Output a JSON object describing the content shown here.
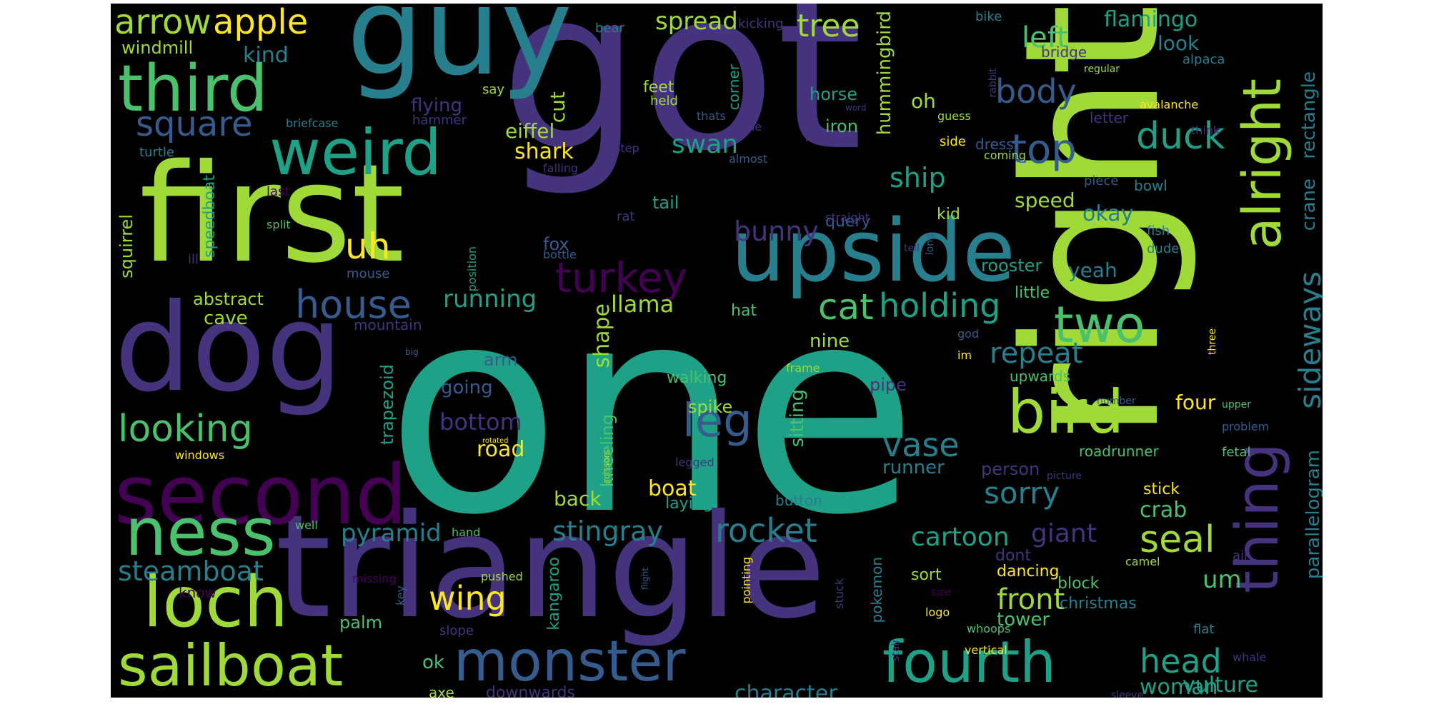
{
  "word_cloud": {
    "palette": {
      "purple_dark": "#440154",
      "indigo": "#46337e",
      "blue": "#365c8d",
      "teal_blue": "#277f8e",
      "teal": "#1fa187",
      "green": "#4ac16d",
      "lime": "#a0da39",
      "yellow": "#fde725",
      "background": "#000000"
    },
    "words": {
      "one": "one",
      "got": "got",
      "right": "right",
      "triangle": "triangle",
      "first": "first",
      "guy": "guy",
      "dog": "dog",
      "second": "second",
      "ness": "ness",
      "loch": "loch",
      "sailboat": "sailboat",
      "weird": "weird",
      "third": "third",
      "upside": "upside",
      "monster": "monster",
      "fourth": "fourth",
      "thing": "thing",
      "alright": "alright",
      "bird": "bird",
      "two": "two",
      "arrow": "arrow",
      "apple": "apple",
      "square": "square",
      "top": "top",
      "turkey": "turkey",
      "house": "house",
      "looking": "looking",
      "leg": "leg",
      "cat": "cat",
      "holding": "holding",
      "duck": "duck",
      "body": "body",
      "seal": "seal",
      "sorry": "sorry",
      "vase": "vase",
      "repeat": "repeat",
      "sideways": "sideways",
      "rocket": "rocket",
      "stingray": "stingray",
      "pyramid": "pyramid",
      "wing": "wing",
      "steamboat": "steamboat",
      "head": "head",
      "front": "front",
      "giant": "giant",
      "cartoon": "cartoon",
      "bottom": "bottom",
      "running": "running",
      "bunny": "bunny",
      "ship": "ship",
      "swan": "swan",
      "uh": "uh",
      "tree": "tree",
      "spread": "spread",
      "left": "left",
      "flamingo": "flamingo",
      "kind": "kind",
      "windmill": "windmill",
      "character": "character",
      "woman": "woman",
      "vulture": "vulture",
      "um": "um",
      "crab": "crab",
      "llama": "llama",
      "shark": "shark",
      "eiffel": "eiffel",
      "cut": "cut",
      "shape": "shape",
      "road": "road",
      "boat": "boat",
      "back": "back",
      "okay": "okay",
      "speed": "speed",
      "rooster": "rooster",
      "yeah": "yeah",
      "four": "four",
      "parallelogram": "parallelogram",
      "crane": "crane",
      "rectangle": "rectangle",
      "hummingbird": "hummingbird",
      "look": "look",
      "oh": "oh",
      "iron": "iron",
      "horse": "horse",
      "nine": "nine",
      "sitting": "sitting",
      "kneeling": "kneeling",
      "trapezoid": "trapezoid",
      "squirrel": "squirrel",
      "speedboat": "speedboat",
      "abstract": "abstract",
      "cave": "cave",
      "fox": "fox",
      "tail": "tail",
      "flying": "flying",
      "feet": "feet",
      "runner": "runner",
      "spike": "spike",
      "walking": "walking",
      "arm": "arm",
      "going": "going",
      "ok": "ok",
      "palm": "palm",
      "kangaroo": "kangaroo",
      "tower": "tower",
      "dancing": "dancing",
      "block": "block",
      "christmas": "christmas",
      "dont": "dont",
      "sort": "sort",
      "person": "person",
      "roadrunner": "roadrunner",
      "stick": "stick",
      "kid": "kid",
      "query": "query",
      "dress": "dress",
      "hat": "hat",
      "pipe": "pipe",
      "little": "little",
      "upwards": "upwards",
      "mountain": "mountain",
      "laying": "laying",
      "button": "button",
      "downwards": "downwards",
      "axe": "axe",
      "pokemon": "pokemon",
      "corner": "corner",
      "bowl": "bowl",
      "letter": "letter",
      "avalanche": "avalanche",
      "alpaca": "alpaca",
      "bridge": "bridge",
      "hammer": "hammer",
      "turtle": "turtle",
      "briefcase": "briefcase",
      "say": "say",
      "held": "held",
      "kicking": "kicking",
      "bear": "bear",
      "bike": "bike",
      "regular": "regular",
      "thats": "thats",
      "time": "time",
      "rhombus": "rhombus",
      "word": "word",
      "guess": "guess",
      "think": "think",
      "side": "side",
      "coming": "coming",
      "step": "step",
      "almost": "almost",
      "falling": "falling",
      "rabbit": "rabbit",
      "piece": "piece",
      "last": "last",
      "split": "split",
      "rat": "rat",
      "straight": "straight",
      "tell": "tell",
      "long": "long",
      "fish": "fish",
      "dude": "dude",
      "bottle": "bottle",
      "ill": "ill",
      "mouse": "mouse",
      "position": "position",
      "god": "god",
      "im": "im",
      "three": "three",
      "big": "big",
      "frame": "frame",
      "number": "number",
      "upper": "upper",
      "problem": "problem",
      "fetal": "fetal",
      "windows": "windows",
      "rotated": "rotated",
      "legged": "legged",
      "scissors": "scissors",
      "picture": "picture",
      "hand": "hand",
      "well": "well",
      "know": "know",
      "missing": "missing",
      "pushed": "pushed",
      "key": "key",
      "slope": "slope",
      "flight": "flight",
      "pointing": "pointing",
      "stuck": "stuck",
      "stair": "stair",
      "size": "size",
      "logo": "logo",
      "whoops": "whoops",
      "air": "air",
      "camel": "camel",
      "flat": "flat",
      "whale": "whale",
      "vertical": "vertical",
      "sleeve": "sleeve"
    }
  }
}
